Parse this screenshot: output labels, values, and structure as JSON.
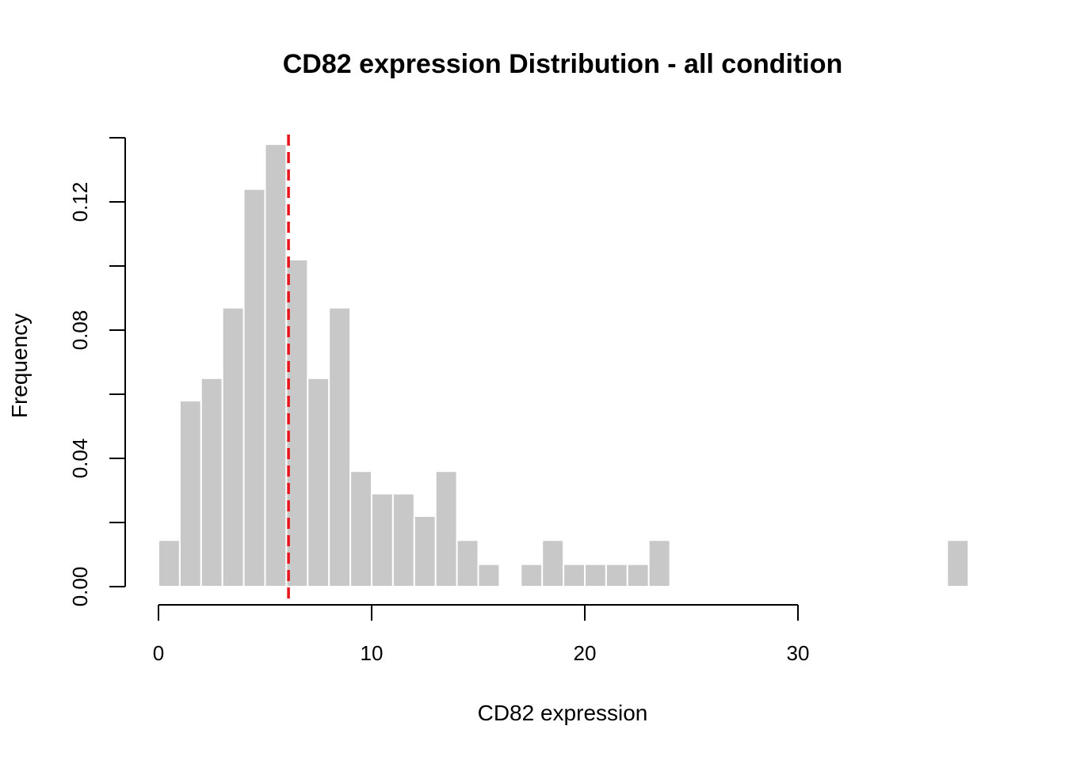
{
  "chart_data": {
    "type": "histogram",
    "title": "CD82 expression Distribution - all condition",
    "xlabel": "CD82 expression",
    "ylabel": "Frequency",
    "bin_width": 1,
    "bins": [
      {
        "start": 0,
        "end": 1,
        "value": 0.0145
      },
      {
        "start": 1,
        "end": 2,
        "value": 0.058
      },
      {
        "start": 2,
        "end": 3,
        "value": 0.065
      },
      {
        "start": 3,
        "end": 4,
        "value": 0.087
      },
      {
        "start": 4,
        "end": 5,
        "value": 0.124
      },
      {
        "start": 5,
        "end": 6,
        "value": 0.138
      },
      {
        "start": 6,
        "end": 7,
        "value": 0.102
      },
      {
        "start": 7,
        "end": 8,
        "value": 0.065
      },
      {
        "start": 8,
        "end": 9,
        "value": 0.087
      },
      {
        "start": 9,
        "end": 10,
        "value": 0.036
      },
      {
        "start": 10,
        "end": 11,
        "value": 0.029
      },
      {
        "start": 11,
        "end": 12,
        "value": 0.029
      },
      {
        "start": 12,
        "end": 13,
        "value": 0.022
      },
      {
        "start": 13,
        "end": 14,
        "value": 0.036
      },
      {
        "start": 14,
        "end": 15,
        "value": 0.0145
      },
      {
        "start": 15,
        "end": 16,
        "value": 0.007
      },
      {
        "start": 16,
        "end": 17,
        "value": 0
      },
      {
        "start": 17,
        "end": 18,
        "value": 0.007
      },
      {
        "start": 18,
        "end": 19,
        "value": 0.0145
      },
      {
        "start": 19,
        "end": 20,
        "value": 0.007
      },
      {
        "start": 20,
        "end": 21,
        "value": 0.007
      },
      {
        "start": 21,
        "end": 22,
        "value": 0.007
      },
      {
        "start": 22,
        "end": 23,
        "value": 0.007
      },
      {
        "start": 23,
        "end": 24,
        "value": 0.0145
      },
      {
        "start": 37,
        "end": 38,
        "value": 0.0145
      }
    ],
    "x_ticks": [
      0,
      10,
      20,
      30
    ],
    "x_tick_labels": [
      "0",
      "10",
      "20",
      "30"
    ],
    "xlim": [
      0,
      30
    ],
    "y_ticks": [
      0,
      0.02,
      0.04,
      0.06,
      0.08,
      0.1,
      0.12,
      0.14
    ],
    "y_tick_labels": [
      "0.00",
      "",
      "0.04",
      "",
      "0.08",
      "",
      "0.12",
      ""
    ],
    "ylim": [
      0,
      0.14
    ],
    "reference_line": {
      "x": 6.1,
      "style": "dashed",
      "color": "#e8141c"
    },
    "bar_color": "#c8c8c8",
    "bar_edge_color": "#ffffff",
    "grid": false,
    "legend": "none"
  }
}
